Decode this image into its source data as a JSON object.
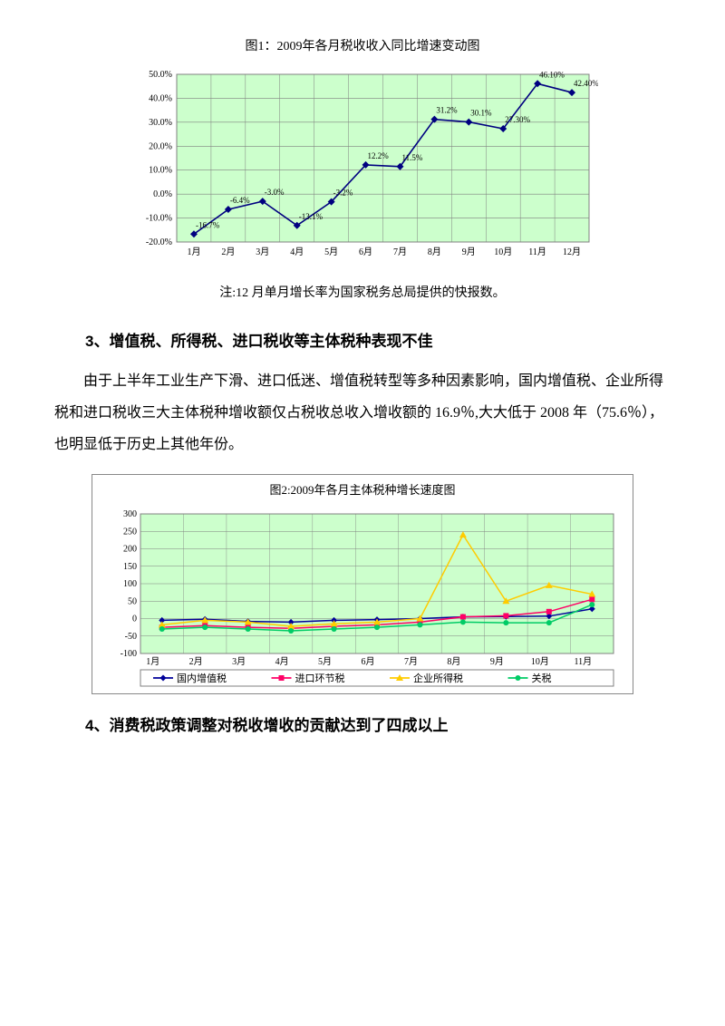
{
  "chart1": {
    "title": "图1：2009年各月税收收入同比增速变动图",
    "type": "line",
    "months": [
      "1月",
      "2月",
      "3月",
      "4月",
      "5月",
      "6月",
      "7月",
      "8月",
      "9月",
      "10月",
      "11月",
      "12月"
    ],
    "values": [
      -16.7,
      -6.4,
      -3.0,
      -13.1,
      -3.2,
      12.2,
      11.5,
      31.2,
      30.1,
      27.3,
      46.1,
      42.4
    ],
    "labels": [
      "-16.7%",
      "-6.4%",
      "-3.0%",
      "-13.1%",
      "-3.2%",
      "12.2%",
      "11.5%",
      "31.2%",
      "30.1%",
      "27.30%",
      "46.10%",
      "42.40%"
    ],
    "ylim": [
      -20,
      50
    ],
    "ytick_step": 10,
    "ytick_labels": [
      "-20.0%",
      "-10.0%",
      "0.0%",
      "10.0%",
      "20.0%",
      "30.0%",
      "40.0%",
      "50.0%"
    ],
    "plot_bg": "#ccffcc",
    "line_color": "#000080",
    "marker_color": "#000080",
    "grid_color": "#808080",
    "border_color": "#808080",
    "font_size": 10
  },
  "note1": "注:12 月单月增长率为国家税务总局提供的快报数。",
  "heading3": "3、增值税、所得税、进口税收等主体税种表现不佳",
  "para3": "由于上半年工业生产下滑、进口低迷、增值税转型等多种因素影响，国内增值税、企业所得税和进口税收三大主体税种增收额仅占税收总收入增收额的 16.9％,大大低于 2008 年（75.6％），也明显低于历史上其他年份。",
  "chart2": {
    "title": "图2:2009年各月主体税种增长速度图",
    "type": "line",
    "months": [
      "1月",
      "2月",
      "3月",
      "4月",
      "5月",
      "6月",
      "7月",
      "8月",
      "9月",
      "10月",
      "11月"
    ],
    "series": [
      {
        "name": "国内增值税",
        "color": "#000099",
        "marker": "diamond",
        "values": [
          -5,
          -2,
          -8,
          -10,
          -5,
          -3,
          0,
          5,
          6,
          7,
          28
        ]
      },
      {
        "name": "进口环节税",
        "color": "#ff0066",
        "marker": "square",
        "values": [
          -25,
          -20,
          -25,
          -28,
          -22,
          -18,
          -10,
          5,
          8,
          20,
          55
        ]
      },
      {
        "name": "企业所得税",
        "color": "#ffcc00",
        "marker": "triangle",
        "values": [
          -18,
          -5,
          -10,
          -22,
          -15,
          -10,
          0,
          240,
          50,
          95,
          70
        ]
      },
      {
        "name": "关税",
        "color": "#00cc66",
        "marker": "circle",
        "values": [
          -30,
          -25,
          -30,
          -35,
          -30,
          -25,
          -18,
          -10,
          -12,
          -12,
          40
        ]
      }
    ],
    "ylim": [
      -100,
      300
    ],
    "ytick_step": 50,
    "plot_bg": "#ccffcc",
    "grid_color": "#808080",
    "border_color": "#808080",
    "font_size": 10
  },
  "heading4": "4、消费税政策调整对税收增收的贡献达到了四成以上"
}
